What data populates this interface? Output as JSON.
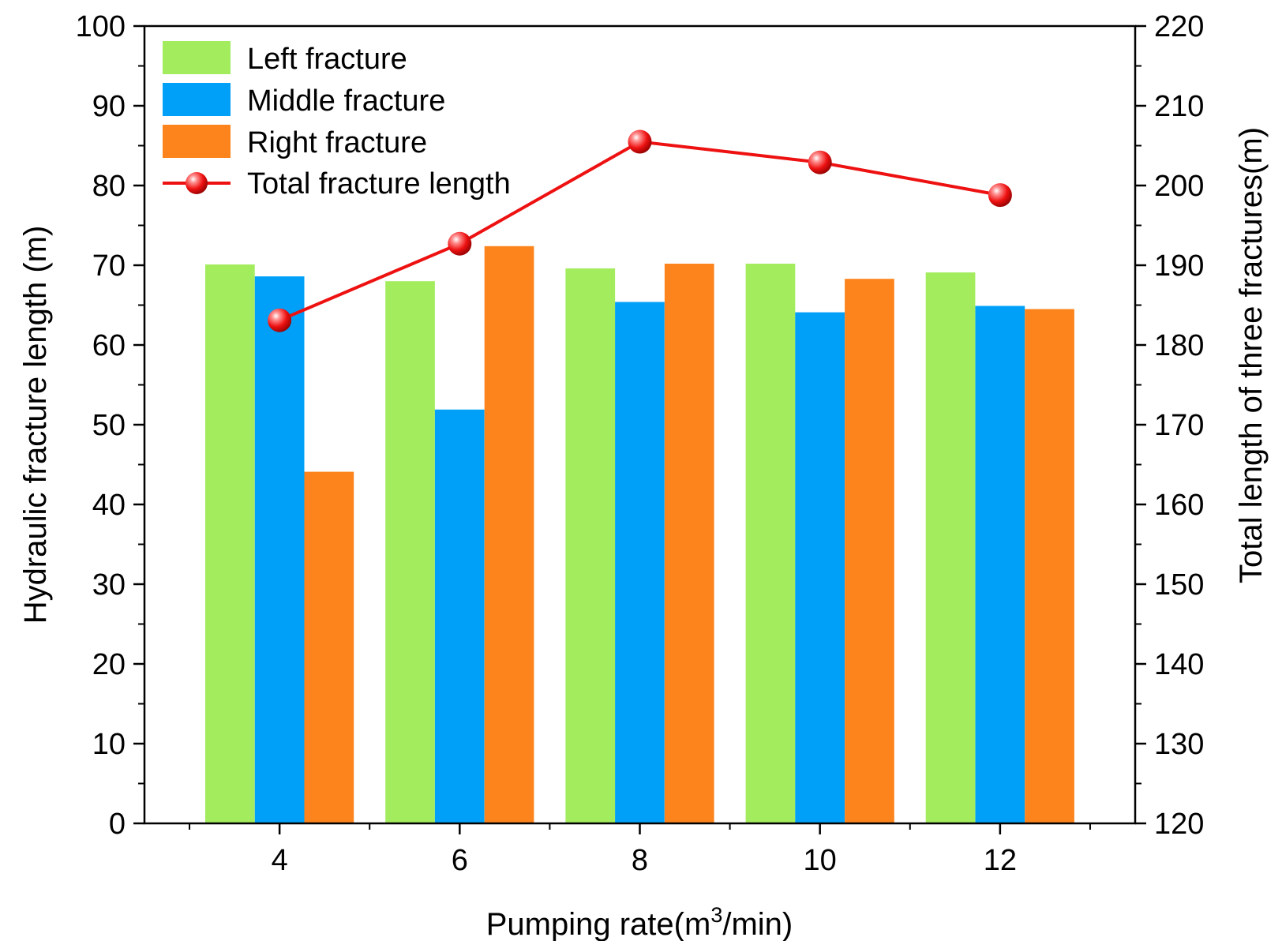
{
  "chart_data": {
    "type": "bar",
    "categories": [
      "4",
      "6",
      "8",
      "10",
      "12"
    ],
    "x": [
      4,
      6,
      8,
      10,
      12
    ],
    "xlabel_parts": {
      "prefix": "Pumping rate(m",
      "superscript": "3",
      "suffix": "/min)"
    },
    "ylabel": "Hydraulic fracture length (m)",
    "y2label": "Total length of three fractures(m)",
    "xlim": [
      2.5,
      13.5
    ],
    "ylim": [
      0,
      100
    ],
    "y2lim": [
      120,
      220
    ],
    "yticks": [
      "0",
      "10",
      "20",
      "30",
      "40",
      "50",
      "60",
      "70",
      "80",
      "90",
      "100"
    ],
    "y2ticks": [
      "120",
      "130",
      "140",
      "150",
      "160",
      "170",
      "180",
      "190",
      "200",
      "210",
      "220"
    ],
    "series": [
      {
        "name": "Left fracture",
        "type": "bar",
        "axis": "left",
        "color": "#a3ec5e",
        "values": [
          70.1,
          68.0,
          69.6,
          70.2,
          69.1
        ]
      },
      {
        "name": "Middle fracture",
        "type": "bar",
        "axis": "left",
        "color": "#00a0f8",
        "values": [
          68.6,
          51.9,
          65.4,
          64.1,
          64.9
        ]
      },
      {
        "name": "Right fracture",
        "type": "bar",
        "axis": "left",
        "color": "#fd841c",
        "values": [
          44.1,
          72.4,
          70.2,
          68.3,
          64.5
        ]
      },
      {
        "name": "Total fracture length",
        "type": "line",
        "axis": "right",
        "color": "#ee1111",
        "values": [
          183.1,
          192.7,
          205.5,
          202.9,
          198.8
        ]
      }
    ],
    "legend_position": "top-left",
    "grid": false
  }
}
